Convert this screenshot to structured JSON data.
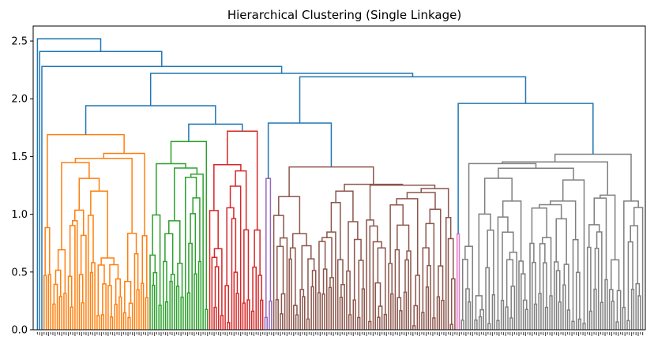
{
  "chart_data": {
    "type": "dendrogram",
    "title": "Hierarchical Clustering (Single Linkage)",
    "xlabel": "",
    "ylabel": "",
    "ylim": [
      0,
      2.63
    ],
    "yticks": [
      0.0,
      0.5,
      1.0,
      1.5,
      2.0,
      2.5
    ],
    "ytick_labels": [
      "0.0",
      "0.5",
      "1.0",
      "1.5",
      "2.0",
      "2.5"
    ],
    "grid": false,
    "colors": {
      "above_threshold": "#1f77b4",
      "orange_cluster": "#ff7f0e",
      "green_cluster": "#2ca02c",
      "red_cluster": "#d62728",
      "purple_cluster": "#9467bd",
      "brown_cluster": "#8c564b",
      "pink_cluster": "#e377c2",
      "gray_cluster": "#7f7f7f"
    },
    "clusters": [
      {
        "color": "orange_cluster",
        "leaves": 48,
        "root_height": 1.69,
        "top_inner_height": 1.59
      },
      {
        "color": "green_cluster",
        "leaves": 27,
        "root_height": 1.63,
        "top_inner_height": 1.55
      },
      {
        "color": "red_cluster",
        "leaves": 25,
        "root_height": 1.72,
        "top_inner_height": 1.55
      },
      {
        "color": "purple_cluster",
        "leaves": 4,
        "root_height": 1.31,
        "top_inner_height": 0.95
      },
      {
        "color": "brown_cluster",
        "leaves": 83,
        "root_height": 1.41,
        "top_inner_height": 1.33
      },
      {
        "color": "pink_cluster",
        "leaves": 2,
        "root_height": 0.83,
        "top_inner_height": 0.5
      },
      {
        "color": "gray_cluster",
        "leaves": 83,
        "root_height": 1.52,
        "top_inner_height": 1.49
      }
    ],
    "merges": [
      {
        "height": 1.78,
        "children": [
          "orange_cluster",
          "green_cluster|red_cluster"
        ]
      },
      {
        "height": 1.78,
        "children": [
          "green_cluster",
          "red_cluster"
        ]
      },
      {
        "height": 1.79,
        "children": [
          "purple_cluster",
          "brown_cluster"
        ]
      },
      {
        "height": 1.96,
        "children": [
          "pink_cluster",
          "gray_cluster"
        ]
      },
      {
        "height": 1.94,
        "children": [
          "orange|green|red",
          "blue_left_tall"
        ]
      },
      {
        "height": 2.19,
        "children": [
          "purple|brown",
          "pink|gray"
        ]
      },
      {
        "height": 2.22,
        "children": [
          "left_group",
          "right_group"
        ]
      },
      {
        "height": 2.28,
        "children": [
          "outlier_3",
          "main"
        ]
      },
      {
        "height": 2.41,
        "children": [
          "outlier_2",
          "main"
        ]
      },
      {
        "height": 2.52,
        "children": [
          "outlier_1",
          "main"
        ]
      }
    ]
  }
}
